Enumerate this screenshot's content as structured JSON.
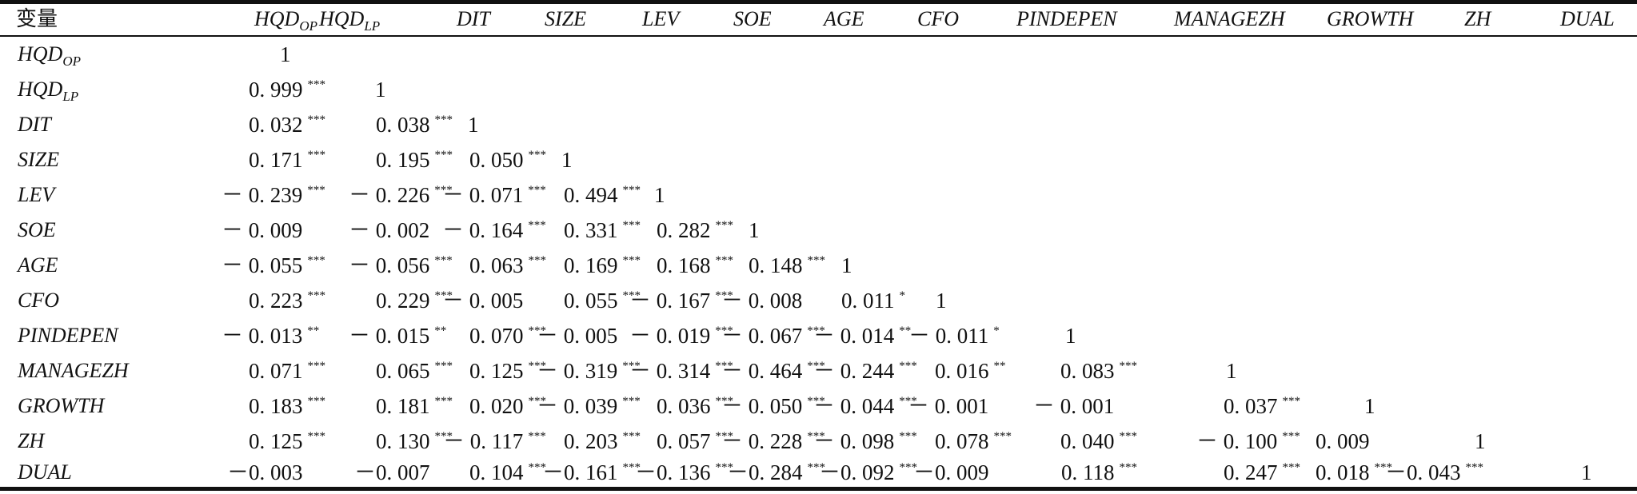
{
  "header_corner": "变量",
  "columns": [
    {
      "base": "HQD",
      "sub": "OP"
    },
    {
      "base": "HQD",
      "sub": "LP"
    },
    {
      "base": "DIT",
      "sub": ""
    },
    {
      "base": "SIZE",
      "sub": ""
    },
    {
      "base": "LEV",
      "sub": ""
    },
    {
      "base": "SOE",
      "sub": ""
    },
    {
      "base": "AGE",
      "sub": ""
    },
    {
      "base": "CFO",
      "sub": ""
    },
    {
      "base": "PINDEPEN",
      "sub": ""
    },
    {
      "base": "MANAGEZH",
      "sub": ""
    },
    {
      "base": "GROWTH",
      "sub": ""
    },
    {
      "base": "ZH",
      "sub": ""
    },
    {
      "base": "DUAL",
      "sub": ""
    }
  ],
  "rows": [
    {
      "base": "HQD",
      "sub": "OP",
      "cells": [
        [
          "1",
          ""
        ]
      ]
    },
    {
      "base": "HQD",
      "sub": "LP",
      "cells": [
        [
          "0. 999",
          "***"
        ],
        [
          "1",
          ""
        ]
      ]
    },
    {
      "base": "DIT",
      "sub": "",
      "cells": [
        [
          "0. 032",
          "***"
        ],
        [
          "0. 038",
          "***"
        ],
        [
          "1",
          ""
        ]
      ]
    },
    {
      "base": "SIZE",
      "sub": "",
      "cells": [
        [
          "0. 171",
          "***"
        ],
        [
          "0. 195",
          "***"
        ],
        [
          "0. 050",
          "***"
        ],
        [
          "1",
          ""
        ]
      ]
    },
    {
      "base": "LEV",
      "sub": "",
      "cells": [
        [
          "－ 0. 239",
          "***"
        ],
        [
          "－ 0. 226",
          "***"
        ],
        [
          "－ 0. 071",
          "***"
        ],
        [
          "0. 494",
          "***"
        ],
        [
          "1",
          ""
        ]
      ]
    },
    {
      "base": "SOE",
      "sub": "",
      "cells": [
        [
          "－ 0. 009",
          ""
        ],
        [
          "－ 0. 002",
          ""
        ],
        [
          "－ 0. 164",
          "***"
        ],
        [
          "0. 331",
          "***"
        ],
        [
          "0. 282",
          "***"
        ],
        [
          "1",
          ""
        ]
      ]
    },
    {
      "base": "AGE",
      "sub": "",
      "cells": [
        [
          "－ 0. 055",
          "***"
        ],
        [
          "－ 0. 056",
          "***"
        ],
        [
          "0. 063",
          "***"
        ],
        [
          "0. 169",
          "***"
        ],
        [
          "0. 168",
          "***"
        ],
        [
          "0. 148",
          "***"
        ],
        [
          "1",
          ""
        ]
      ]
    },
    {
      "base": "CFO",
      "sub": "",
      "cells": [
        [
          "0. 223",
          "***"
        ],
        [
          "0. 229",
          "***"
        ],
        [
          "－ 0. 005",
          ""
        ],
        [
          "0. 055",
          "***"
        ],
        [
          "－ 0. 167",
          "***"
        ],
        [
          "－ 0. 008",
          ""
        ],
        [
          "0. 011",
          "*"
        ],
        [
          "1",
          ""
        ]
      ]
    },
    {
      "base": "PINDEPEN",
      "sub": "",
      "cells": [
        [
          "－ 0. 013",
          "**"
        ],
        [
          "－ 0. 015",
          "**"
        ],
        [
          "0. 070",
          "***"
        ],
        [
          "－ 0. 005",
          ""
        ],
        [
          "－ 0. 019",
          "***"
        ],
        [
          "－ 0. 067",
          "***"
        ],
        [
          "－ 0. 014",
          "**"
        ],
        [
          "－ 0. 011",
          "*"
        ],
        [
          "1",
          ""
        ]
      ]
    },
    {
      "base": "MANAGEZH",
      "sub": "",
      "cells": [
        [
          "0. 071",
          "***"
        ],
        [
          "0. 065",
          "***"
        ],
        [
          "0. 125",
          "***"
        ],
        [
          "－ 0. 319",
          "***"
        ],
        [
          "－ 0. 314",
          "***"
        ],
        [
          "－ 0. 464",
          "***"
        ],
        [
          "－ 0. 244",
          "***"
        ],
        [
          "0. 016",
          "**"
        ],
        [
          "0. 083",
          "***"
        ],
        [
          "1",
          ""
        ]
      ]
    },
    {
      "base": "GROWTH",
      "sub": "",
      "cells": [
        [
          "0. 183",
          "***"
        ],
        [
          "0. 181",
          "***"
        ],
        [
          "0. 020",
          "***"
        ],
        [
          "－ 0. 039",
          "***"
        ],
        [
          "0. 036",
          "***"
        ],
        [
          "－ 0. 050",
          "***"
        ],
        [
          "－ 0. 044",
          "***"
        ],
        [
          "－ 0. 001",
          ""
        ],
        [
          "－ 0. 001",
          ""
        ],
        [
          "0. 037",
          "***"
        ],
        [
          "1",
          ""
        ]
      ]
    },
    {
      "base": "ZH",
      "sub": "",
      "cells": [
        [
          "0. 125",
          "***"
        ],
        [
          "0. 130",
          "***"
        ],
        [
          "－ 0. 117",
          "***"
        ],
        [
          "0. 203",
          "***"
        ],
        [
          "0. 057",
          "***"
        ],
        [
          "－ 0. 228",
          "***"
        ],
        [
          "－ 0. 098",
          "***"
        ],
        [
          "0. 078",
          "***"
        ],
        [
          "0. 040",
          "***"
        ],
        [
          "－ 0. 100",
          "***"
        ],
        [
          "0. 009",
          ""
        ],
        [
          "1",
          ""
        ]
      ]
    },
    {
      "base": "DUAL",
      "sub": "",
      "cells": [
        [
          "－0. 003",
          ""
        ],
        [
          "－0. 007",
          ""
        ],
        [
          "0. 104",
          "***"
        ],
        [
          "－0. 161",
          "***"
        ],
        [
          "－0. 136",
          "***"
        ],
        [
          "－0. 284",
          "***"
        ],
        [
          "－0. 092",
          "***"
        ],
        [
          "－0. 009",
          ""
        ],
        [
          "0. 118",
          "***"
        ],
        [
          "0. 247",
          "***"
        ],
        [
          "0. 018",
          "***"
        ],
        [
          "－0. 043",
          "***"
        ],
        [
          "1",
          ""
        ]
      ]
    }
  ]
}
